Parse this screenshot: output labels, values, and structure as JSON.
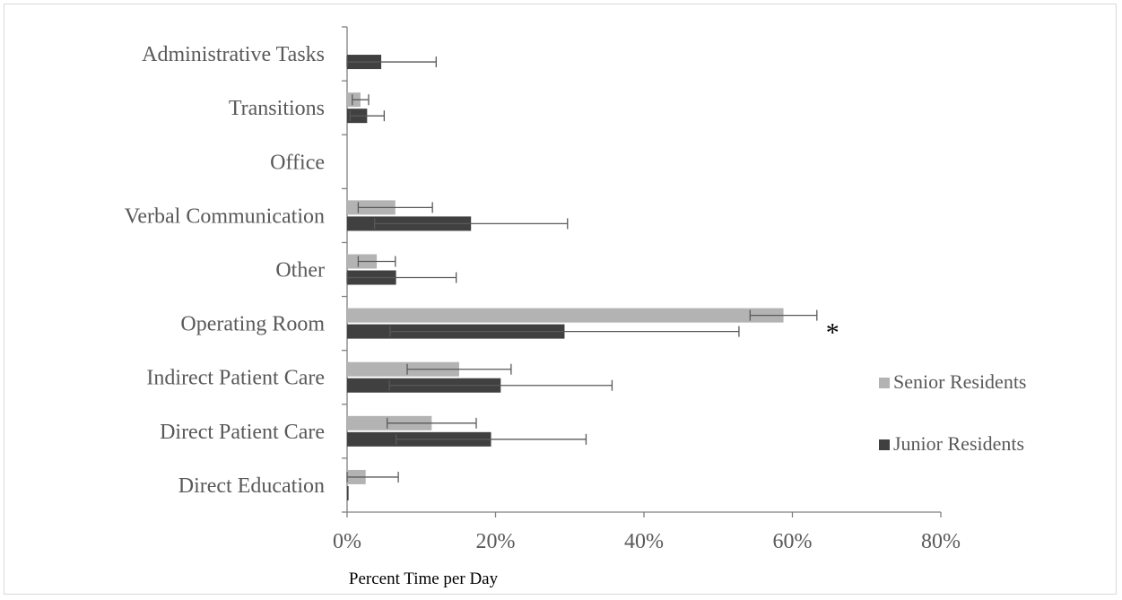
{
  "chart_data": {
    "type": "bar",
    "orientation": "horizontal",
    "xlabel": "Percent Time per Day",
    "ylabel": "",
    "xlim": [
      0,
      80
    ],
    "xticks": [
      "0%",
      "20%",
      "40%",
      "60%",
      "80%"
    ],
    "xtick_values": [
      0,
      20,
      40,
      60,
      80
    ],
    "categories": [
      "Administrative Tasks",
      "Transitions",
      "Office",
      "Verbal Communication",
      "Other",
      "Operating Room",
      "Indirect Patient Care",
      "Direct Patient Care",
      "Direct Education"
    ],
    "series": [
      {
        "name": "Senior Residents",
        "color": "#b3b3b3",
        "values": [
          0,
          1.8,
          0,
          6.5,
          4.0,
          58.8,
          15.1,
          11.4,
          2.5
        ],
        "error": [
          0,
          1.1,
          0,
          5.0,
          2.5,
          4.5,
          7.0,
          6.0,
          4.4
        ]
      },
      {
        "name": "Junior Residents",
        "color": "#404040",
        "values": [
          4.6,
          2.7,
          0,
          16.7,
          6.6,
          29.3,
          20.7,
          19.4,
          0.2
        ],
        "error": [
          7.4,
          2.3,
          0,
          13.0,
          8.1,
          23.5,
          15.0,
          12.8,
          0
        ]
      }
    ],
    "annotations": [
      {
        "category": "Operating Room",
        "text": "*"
      }
    ],
    "legend_position": "right",
    "grid": false
  }
}
